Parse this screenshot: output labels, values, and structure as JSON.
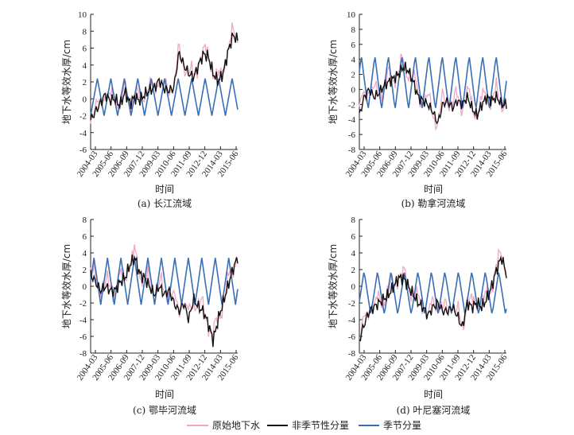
{
  "chart_data": {
    "type": "line",
    "legend": {
      "placement": "bottom-center",
      "items": [
        {
          "name": "原始地下水",
          "color": "#f1a7c4"
        },
        {
          "name": "非季节性分量",
          "color": "#111111"
        },
        {
          "name": "季节分量",
          "color": "#3a6fb5"
        }
      ]
    },
    "panels": [
      {
        "caption": "(a) 长江流域",
        "xlabel": "时间",
        "ylabel": "地下水等效水厚/cm",
        "ylim": [
          -6,
          10
        ],
        "yticks": [
          -6,
          -4,
          -2,
          0,
          2,
          4,
          6,
          8,
          10
        ],
        "xtick_labels": [
          "2004-03",
          "2005-06",
          "2006-09",
          "2007-12",
          "2009-03",
          "2010-06",
          "2011-09",
          "2012-12",
          "2014-03",
          "2015-06"
        ],
        "seasonal": {
          "amp": 2.2,
          "offset": 0.2,
          "phase": 0.0
        },
        "nonseasonal": [
          -2.5,
          -1.5,
          -0.5,
          0.5,
          -0.2,
          0.0,
          -0.8,
          0.8,
          -0.5,
          0.2,
          -0.2,
          0.5,
          1.0,
          1.3,
          2.2,
          1.2,
          1.0,
          1.3,
          5.5,
          4.0,
          3.0,
          2.5,
          4.0,
          5.3,
          5.0,
          3.0,
          2.0,
          3.0,
          5.5,
          7.5,
          7.0
        ],
        "original_extra": 0.8
      },
      {
        "caption": "(b) 勒拿河流域",
        "xlabel": "时间",
        "ylabel": "地下水等效水厚/cm",
        "ylim": [
          -8,
          10
        ],
        "yticks": [
          -8,
          -6,
          -4,
          -2,
          0,
          2,
          4,
          6,
          8,
          10
        ],
        "xtick_labels": [
          "2004-03",
          "2005-06",
          "2006-09",
          "2007-12",
          "2009-03",
          "2010-06",
          "2011-09",
          "2012-12",
          "2014-03",
          "2015-06"
        ],
        "seasonal": {
          "amp": 3.6,
          "offset": 0.9,
          "phase": 0.35
        },
        "nonseasonal": [
          -3.5,
          -1.0,
          0.0,
          -1.0,
          -0.5,
          0.5,
          1.0,
          1.5,
          2.0,
          3.0,
          2.5,
          1.0,
          -1.0,
          -1.5,
          -2.0,
          -3.0,
          -4.5,
          -2.0,
          -1.5,
          -2.5,
          -1.5,
          -2.0,
          -1.0,
          -2.5,
          -3.5,
          -2.0,
          -1.0,
          -1.5,
          -1.0,
          -2.0,
          -2.0
        ],
        "original_extra": 1.2
      },
      {
        "caption": "(c) 鄂毕河流域",
        "xlabel": "时间",
        "ylabel": "地下水等效水厚/cm",
        "ylim": [
          -8,
          8
        ],
        "yticks": [
          -8,
          -6,
          -4,
          -2,
          0,
          2,
          4,
          6,
          8
        ],
        "xtick_labels": [
          "2004-03",
          "2005-06",
          "2006-09",
          "2007-12",
          "2009-03",
          "2010-06",
          "2011-09",
          "2012-12",
          "2014-03",
          "2015-06"
        ],
        "seasonal": {
          "amp": 2.8,
          "offset": 0.6,
          "phase": 0.25
        },
        "nonseasonal": [
          1.5,
          0.5,
          -0.5,
          0.0,
          -0.5,
          -0.5,
          0.5,
          1.0,
          2.5,
          3.5,
          1.5,
          1.0,
          0.0,
          -1.0,
          0.0,
          -1.0,
          -0.5,
          -2.0,
          -3.0,
          -2.0,
          -4.0,
          -1.5,
          -2.5,
          -3.0,
          -4.5,
          -6.5,
          -4.0,
          -2.0,
          0.0,
          2.0,
          3.5
        ],
        "original_extra": 1.0
      },
      {
        "caption": "(d) 叶尼塞河流域",
        "xlabel": "时间",
        "ylabel": "地下水等效水厚/cm",
        "ylim": [
          -8,
          8
        ],
        "yticks": [
          -8,
          -6,
          -4,
          -2,
          0,
          2,
          4,
          6,
          8
        ],
        "xtick_labels": [
          "2004-03",
          "2005-06",
          "2006-09",
          "2007-12",
          "2009-03",
          "2010-06",
          "2011-09",
          "2012-12",
          "2014-03",
          "2015-06"
        ],
        "seasonal": {
          "amp": 2.6,
          "offset": -0.8,
          "phase": 0.15
        },
        "nonseasonal": [
          -6.5,
          -4.5,
          -3.0,
          -2.5,
          -2.0,
          -1.5,
          -1.0,
          0.0,
          1.0,
          1.0,
          0.0,
          -1.0,
          -2.0,
          -2.5,
          -3.5,
          -2.5,
          -2.0,
          -3.0,
          -3.0,
          -2.5,
          -3.5,
          -5.0,
          -2.0,
          -2.5,
          -2.0,
          -2.5,
          -1.5,
          0.0,
          2.0,
          3.5,
          1.5
        ],
        "original_extra": 1.1
      }
    ]
  }
}
